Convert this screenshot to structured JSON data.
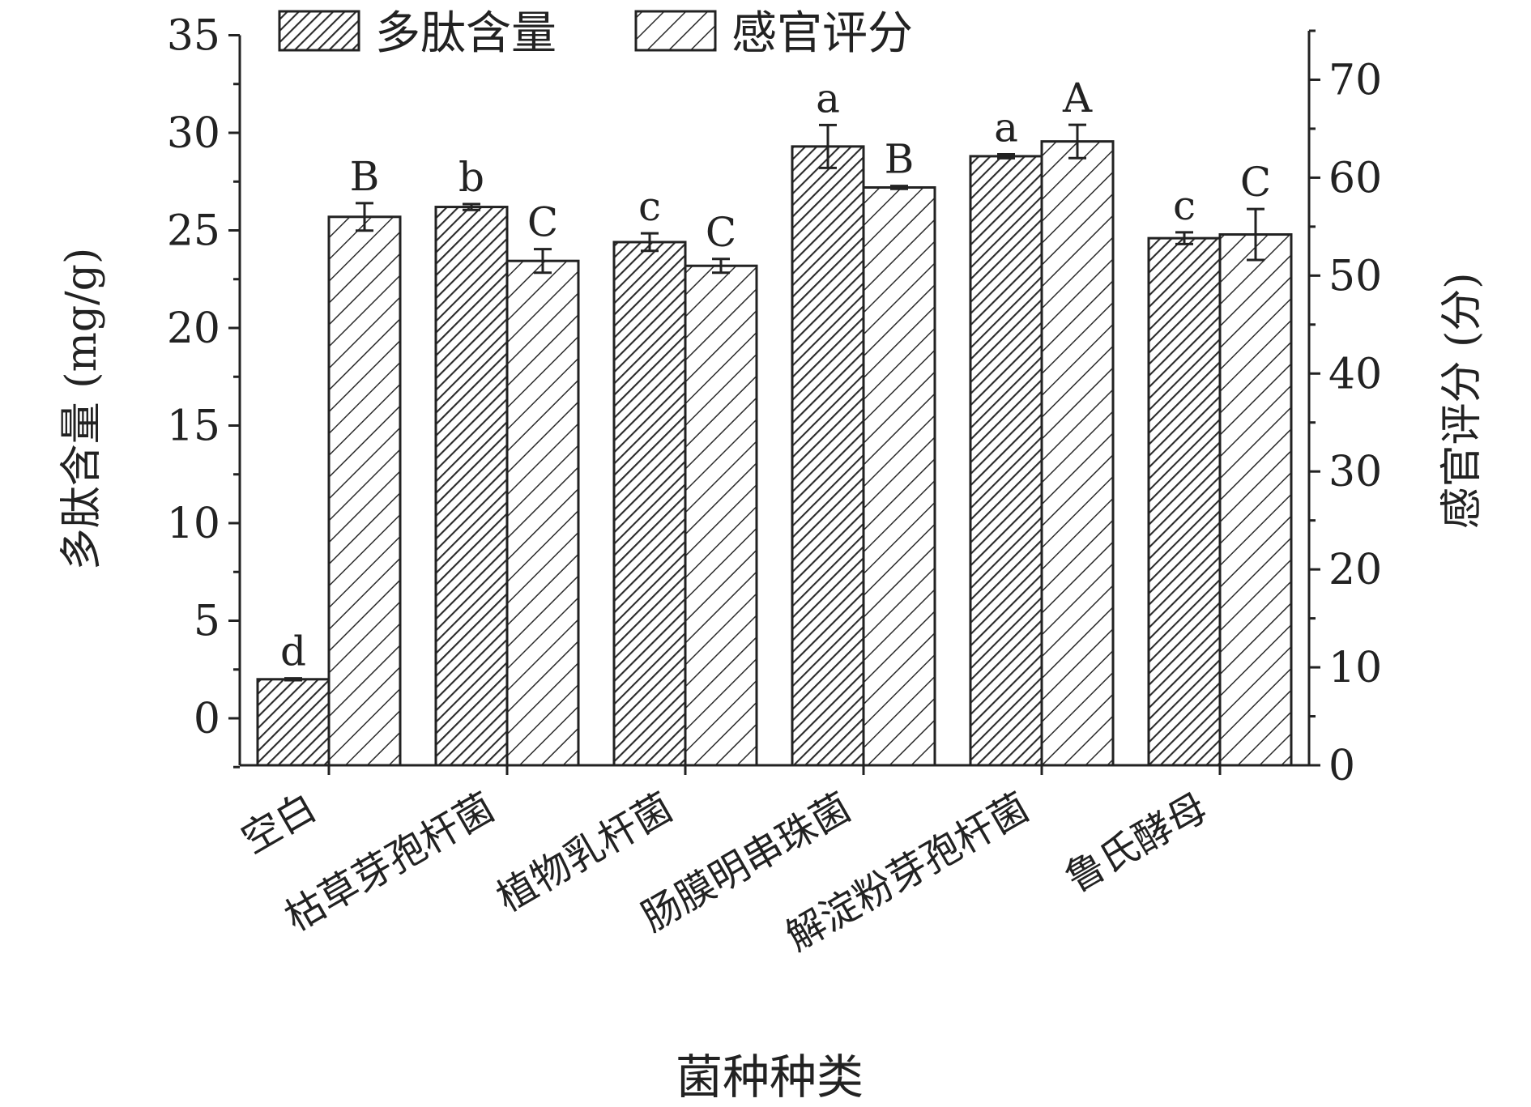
{
  "chart_data": {
    "type": "bar",
    "xlabel": "菌种种类",
    "ylabel_left": "多肽含量 (mg/g)",
    "ylabel_right": "感官评分 (分)",
    "categories": [
      "空白",
      "枯草芽孢杆菌",
      "植物乳杆菌",
      "肠膜明串珠菌",
      "解淀粉芽孢杆菌",
      "鲁氏酵母"
    ],
    "left_axis": {
      "min": -2.5,
      "max": 35,
      "ticks": [
        0,
        5,
        10,
        15,
        20,
        25,
        30,
        35
      ]
    },
    "right_axis": {
      "min": 0,
      "max": 75,
      "ticks": [
        0,
        10,
        20,
        30,
        40,
        50,
        60,
        70
      ]
    },
    "legend_position": "top",
    "grid": false,
    "series": [
      {
        "name": "多肽含量",
        "axis": "left",
        "pattern": "dense-hatch",
        "values": [
          2.0,
          26.2,
          24.4,
          29.3,
          28.8,
          24.6
        ],
        "errors": [
          0.05,
          0.15,
          0.45,
          1.1,
          0.1,
          0.3
        ],
        "labels": [
          "d",
          "b",
          "c",
          "a",
          "a",
          "c"
        ]
      },
      {
        "name": "感官评分",
        "axis": "right",
        "pattern": "sparse-hatch",
        "values": [
          56,
          51.5,
          51,
          59,
          63.7,
          54.2
        ],
        "errors": [
          1.4,
          1.2,
          0.7,
          0.15,
          1.7,
          2.6
        ],
        "labels": [
          "B",
          "C",
          "C",
          "B",
          "A",
          "C"
        ]
      }
    ]
  }
}
